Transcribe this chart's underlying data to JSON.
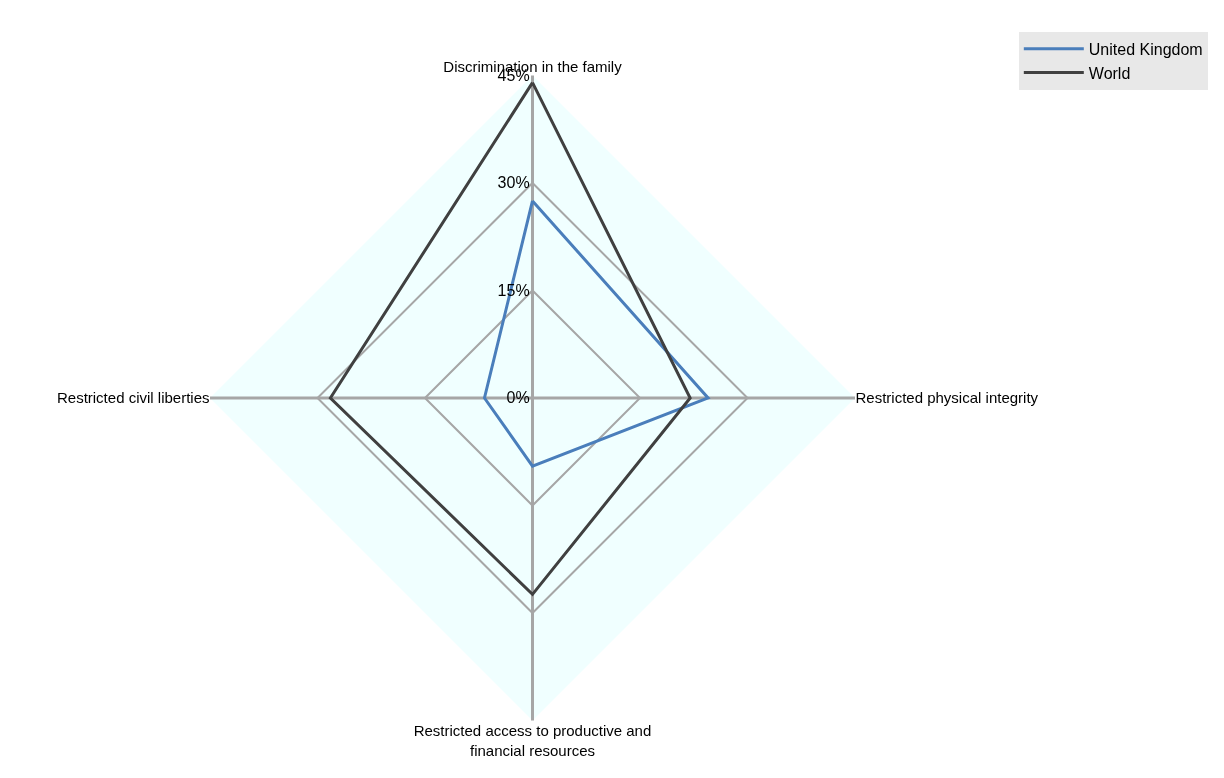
{
  "chart_data": {
    "type": "radar",
    "categories": [
      "Discrimination in the family",
      "Restricted physical integrity",
      "Restricted access to productive and financial resources",
      "Restricted civil liberties"
    ],
    "series": [
      {
        "name": "United Kingdom",
        "color": "#4a7ebb",
        "values": [
          27.5,
          24.5,
          9.5,
          6.7
        ]
      },
      {
        "name": "World",
        "color": "#404040",
        "values": [
          44,
          22,
          27.4,
          28.2
        ]
      }
    ],
    "ylim": [
      0,
      45
    ],
    "yticks": [
      {
        "value": 0,
        "label": "0%"
      },
      {
        "value": 15,
        "label": "15%"
      },
      {
        "value": 30,
        "label": "30%"
      },
      {
        "value": 45,
        "label": "45%"
      }
    ],
    "grid": true,
    "legend": "top right",
    "marker": "none",
    "line_style": "solid"
  }
}
